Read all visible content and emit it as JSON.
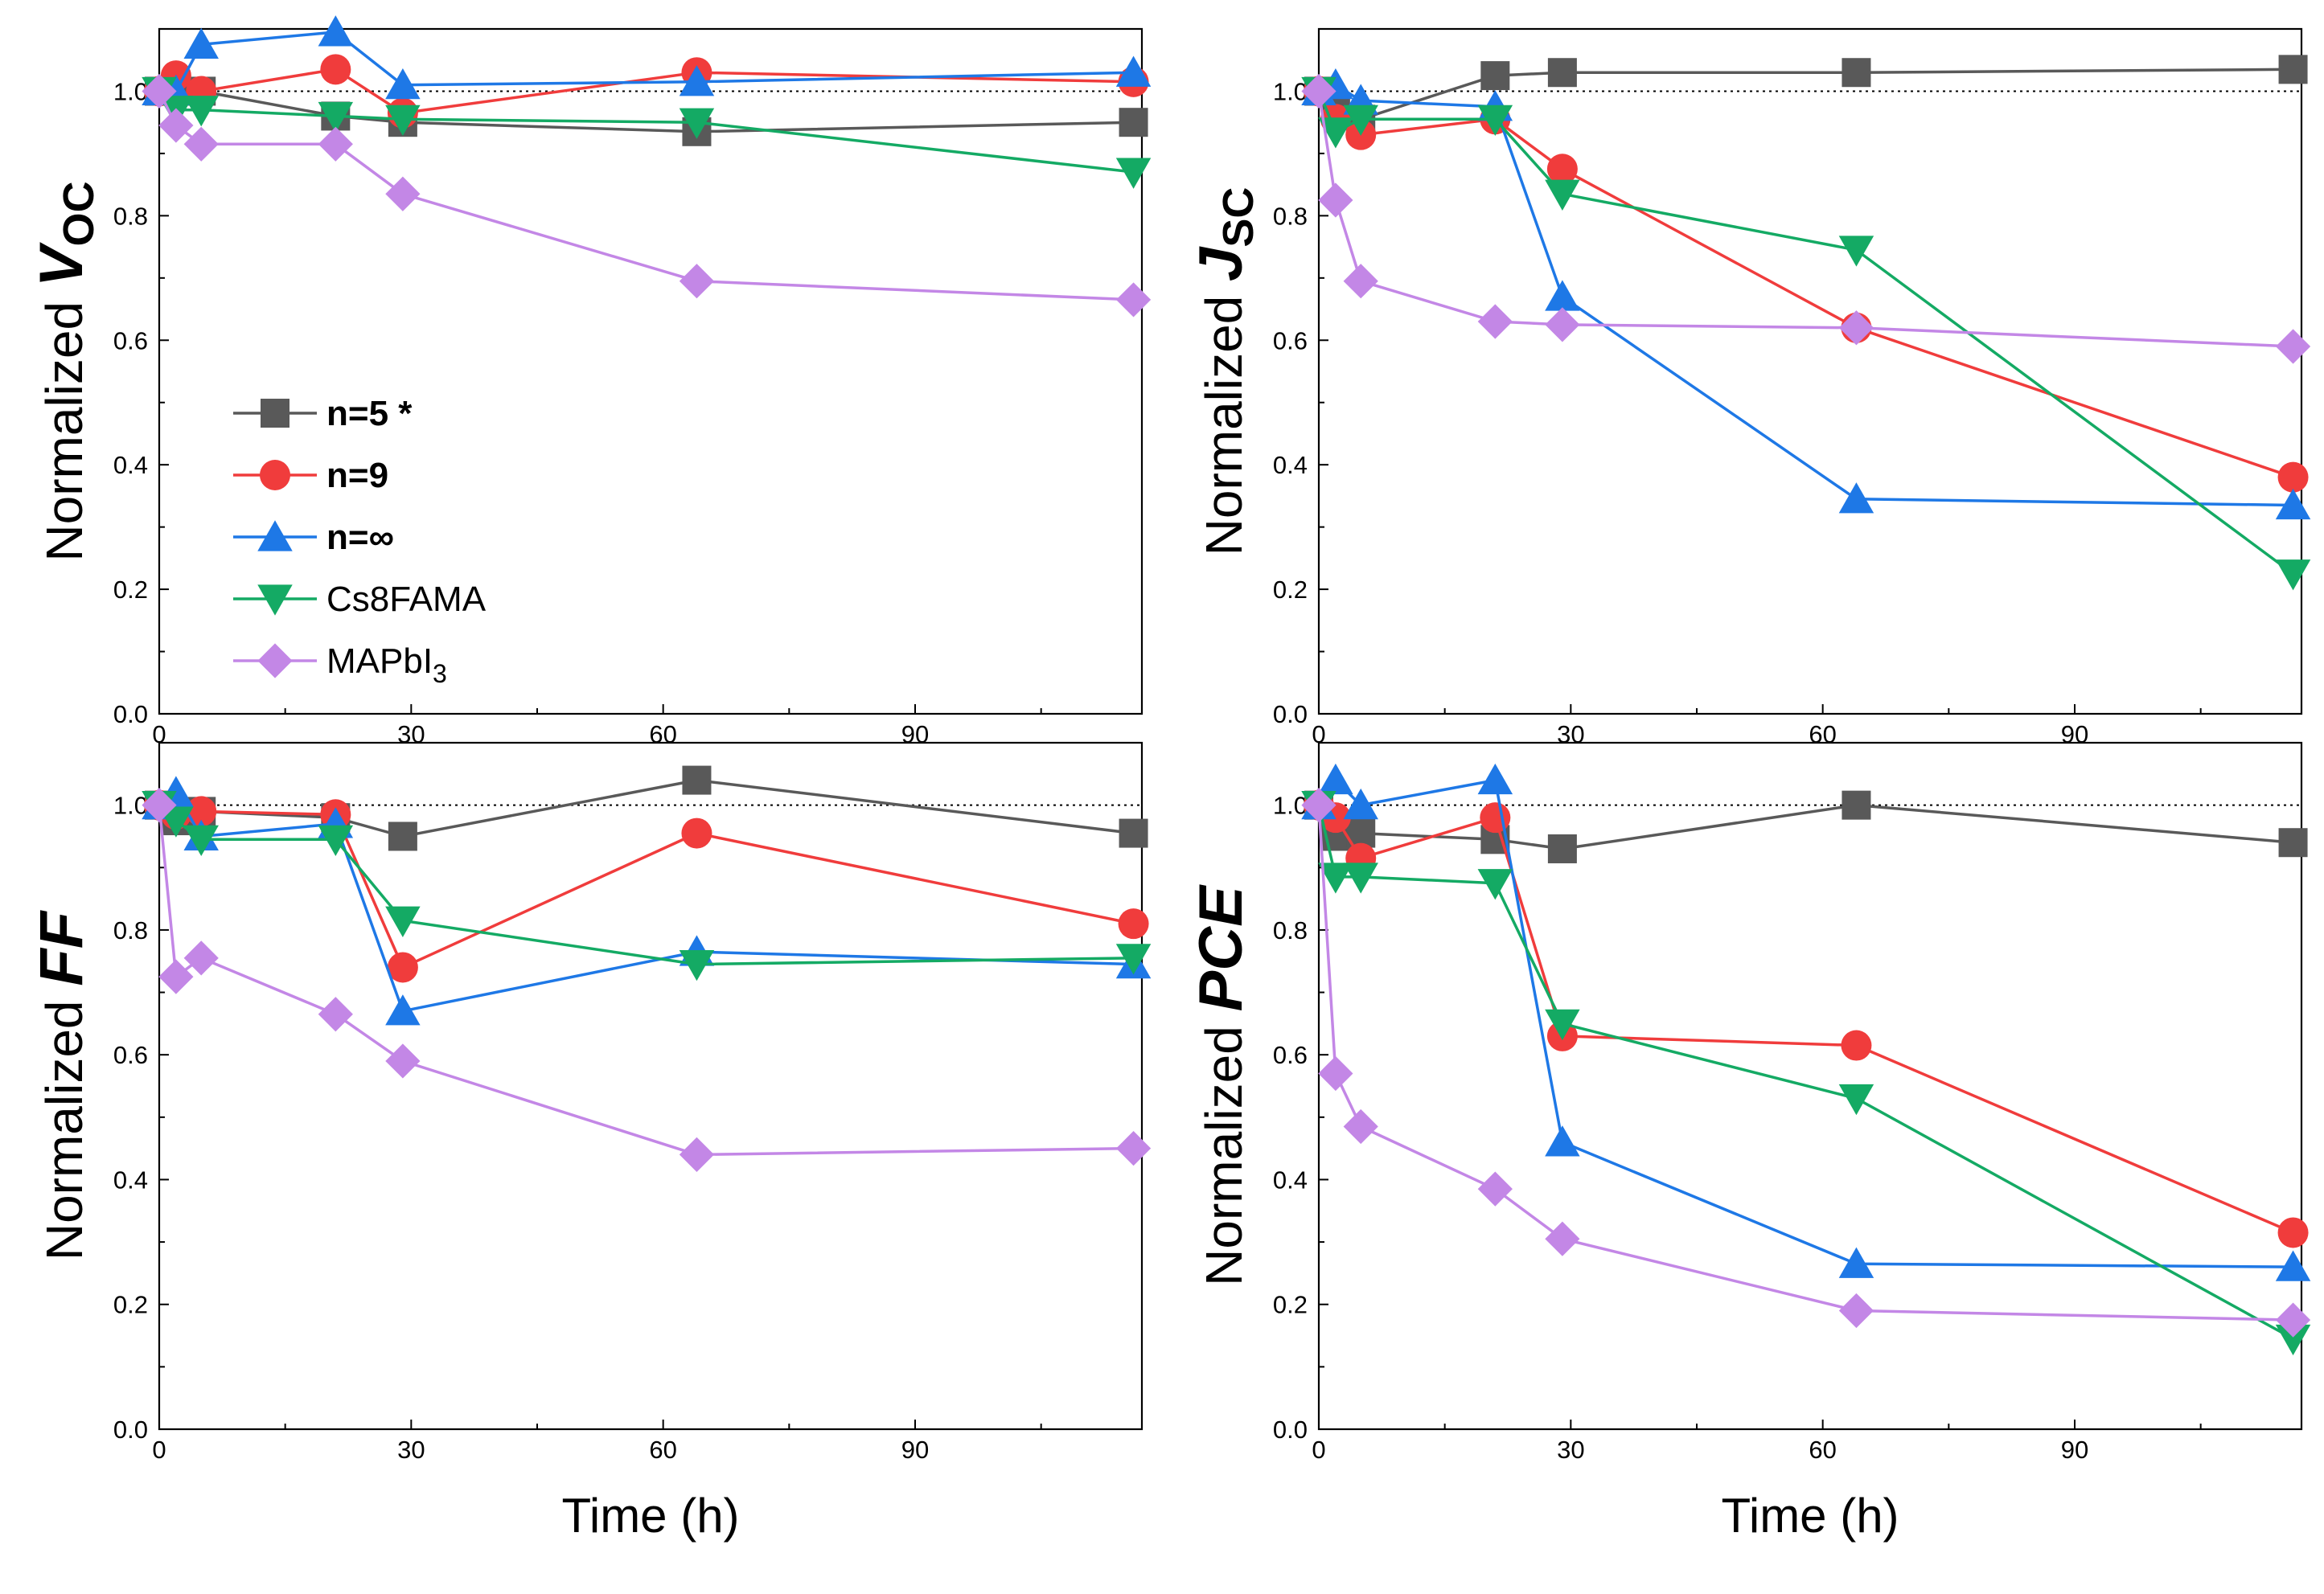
{
  "chart_data": [
    {
      "id": "voc",
      "type": "line",
      "ylabel_prefix": "Normalized",
      "ylabel_main": "V",
      "ylabel_sub": "OC",
      "xlabel": "",
      "xlim": [
        0,
        117
      ],
      "ylim": [
        0,
        1.1
      ],
      "xticks": [
        0,
        30,
        60,
        90
      ],
      "yticks": [
        0.0,
        0.2,
        0.4,
        0.6,
        0.8,
        1.0
      ],
      "reference_line": 1.0,
      "series": [
        {
          "name": "n=5 *",
          "x": [
            0,
            2,
            5,
            21,
            29,
            64,
            116
          ],
          "values": [
            1.0,
            1.01,
            1.0,
            0.96,
            0.95,
            0.935,
            0.95
          ]
        },
        {
          "name": "n=9",
          "x": [
            0,
            2,
            5,
            21,
            29,
            64,
            116
          ],
          "values": [
            1.0,
            1.025,
            1.0,
            1.035,
            0.965,
            1.03,
            1.015
          ]
        },
        {
          "name": "n=∞",
          "x": [
            0,
            2,
            5,
            21,
            29,
            64,
            116
          ],
          "values": [
            1.0,
            1.0,
            1.075,
            1.095,
            1.01,
            1.015,
            1.03
          ]
        },
        {
          "name": "Cs8FAMA",
          "x": [
            0,
            2,
            5,
            21,
            29,
            64,
            116
          ],
          "values": [
            1.0,
            0.97,
            0.97,
            0.96,
            0.955,
            0.95,
            0.87
          ]
        },
        {
          "name": "MAPbI3",
          "x": [
            0,
            2,
            5,
            21,
            29,
            64,
            116
          ],
          "values": [
            1.0,
            0.945,
            0.915,
            0.915,
            0.835,
            0.695,
            0.665
          ]
        }
      ]
    },
    {
      "id": "jsc",
      "type": "line",
      "ylabel_prefix": "Normalized",
      "ylabel_main": "J",
      "ylabel_sub": "SC",
      "xlabel": "",
      "xlim": [
        0,
        117
      ],
      "ylim": [
        0,
        1.1
      ],
      "xticks": [
        0,
        30,
        60,
        90
      ],
      "yticks": [
        0.0,
        0.2,
        0.4,
        0.6,
        0.8,
        1.0
      ],
      "reference_line": 1.0,
      "series": [
        {
          "name": "n=5 *",
          "x": [
            0,
            2,
            5,
            21,
            29,
            64,
            116
          ],
          "values": [
            1.0,
            0.975,
            0.955,
            1.025,
            1.03,
            1.03,
            1.035
          ]
        },
        {
          "name": "n=9",
          "x": [
            0,
            2,
            5,
            21,
            29,
            64,
            116
          ],
          "values": [
            1.0,
            0.955,
            0.93,
            0.955,
            0.875,
            0.62,
            0.38
          ]
        },
        {
          "name": "n=∞",
          "x": [
            0,
            2,
            5,
            21,
            29,
            64,
            116
          ],
          "values": [
            1.0,
            1.01,
            0.985,
            0.975,
            0.67,
            0.345,
            0.335
          ]
        },
        {
          "name": "Cs8FAMA",
          "x": [
            0,
            2,
            5,
            21,
            29,
            64,
            116
          ],
          "values": [
            1.0,
            0.935,
            0.955,
            0.955,
            0.835,
            0.745,
            0.225
          ]
        },
        {
          "name": "MAPbI3",
          "x": [
            0,
            2,
            5,
            21,
            29,
            64,
            116
          ],
          "values": [
            1.0,
            0.825,
            0.695,
            0.63,
            0.625,
            0.62,
            0.59
          ]
        }
      ]
    },
    {
      "id": "ff",
      "type": "line",
      "ylabel_prefix": "Normalized",
      "ylabel_main": "FF",
      "ylabel_sub": "",
      "xlabel": "Time (h)",
      "xlim": [
        0,
        117
      ],
      "ylim": [
        0,
        1.1
      ],
      "xticks": [
        0,
        30,
        60,
        90
      ],
      "yticks": [
        0.0,
        0.2,
        0.4,
        0.6,
        0.8,
        1.0
      ],
      "reference_line": 1.0,
      "series": [
        {
          "name": "n=5 *",
          "x": [
            0,
            2,
            5,
            21,
            29,
            64,
            116
          ],
          "values": [
            1.0,
            0.975,
            0.99,
            0.98,
            0.95,
            1.04,
            0.955
          ]
        },
        {
          "name": "n=9",
          "x": [
            0,
            2,
            5,
            21,
            29,
            64,
            116
          ],
          "values": [
            1.0,
            0.985,
            0.99,
            0.985,
            0.74,
            0.955,
            0.81
          ]
        },
        {
          "name": "n=∞",
          "x": [
            0,
            2,
            5,
            21,
            29,
            64,
            116
          ],
          "values": [
            1.0,
            1.02,
            0.95,
            0.97,
            0.67,
            0.765,
            0.745
          ]
        },
        {
          "name": "Cs8FAMA",
          "x": [
            0,
            2,
            5,
            21,
            29,
            64,
            116
          ],
          "values": [
            1.0,
            0.975,
            0.945,
            0.945,
            0.815,
            0.745,
            0.755
          ]
        },
        {
          "name": "MAPbI3",
          "x": [
            0,
            2,
            5,
            21,
            29,
            64,
            116
          ],
          "values": [
            1.0,
            0.725,
            0.755,
            0.665,
            0.59,
            0.44,
            0.45
          ]
        }
      ]
    },
    {
      "id": "pce",
      "type": "line",
      "ylabel_prefix": "Normalized",
      "ylabel_main": "PCE",
      "ylabel_sub": "",
      "xlabel": "Time (h)",
      "xlim": [
        0,
        117
      ],
      "ylim": [
        0,
        1.1
      ],
      "xticks": [
        0,
        30,
        60,
        90
      ],
      "yticks": [
        0.0,
        0.2,
        0.4,
        0.6,
        0.8,
        1.0
      ],
      "reference_line": 1.0,
      "series": [
        {
          "name": "n=5 *",
          "x": [
            0,
            2,
            5,
            21,
            29,
            64,
            116
          ],
          "values": [
            1.0,
            0.95,
            0.955,
            0.945,
            0.93,
            1.0,
            0.94
          ]
        },
        {
          "name": "n=9",
          "x": [
            0,
            2,
            5,
            21,
            29,
            64,
            116
          ],
          "values": [
            1.0,
            0.98,
            0.915,
            0.98,
            0.63,
            0.615,
            0.315
          ]
        },
        {
          "name": "n=∞",
          "x": [
            0,
            2,
            5,
            21,
            29,
            64,
            116
          ],
          "values": [
            1.0,
            1.04,
            1.0,
            1.04,
            0.46,
            0.265,
            0.26
          ]
        },
        {
          "name": "Cs8FAMA",
          "x": [
            0,
            2,
            5,
            21,
            29,
            64,
            116
          ],
          "values": [
            1.0,
            0.885,
            0.885,
            0.875,
            0.65,
            0.53,
            0.145
          ]
        },
        {
          "name": "MAPbI3",
          "x": [
            0,
            2,
            5,
            21,
            29,
            64,
            116
          ],
          "values": [
            1.0,
            0.57,
            0.485,
            0.385,
            0.305,
            0.19,
            0.175
          ]
        }
      ]
    }
  ],
  "legend": [
    {
      "label": "n=5 *",
      "bold": true,
      "sub": ""
    },
    {
      "label": "n=9",
      "bold": true,
      "sub": ""
    },
    {
      "label": "n=∞",
      "bold": true,
      "sub": ""
    },
    {
      "label": "Cs8FAMA",
      "bold": false,
      "sub": ""
    },
    {
      "label": "MAPbI",
      "bold": false,
      "sub": "3"
    }
  ],
  "styles": {
    "n=5 *": {
      "color": "#595959",
      "marker": "square"
    },
    "n=9": {
      "color": "#F03C3C",
      "marker": "circle"
    },
    "n=∞": {
      "color": "#1E78E6",
      "marker": "triangle-up"
    },
    "Cs8FAMA": {
      "color": "#14AA64",
      "marker": "triangle-down"
    },
    "MAPbI3": {
      "color": "#C387E6",
      "marker": "diamond"
    }
  }
}
